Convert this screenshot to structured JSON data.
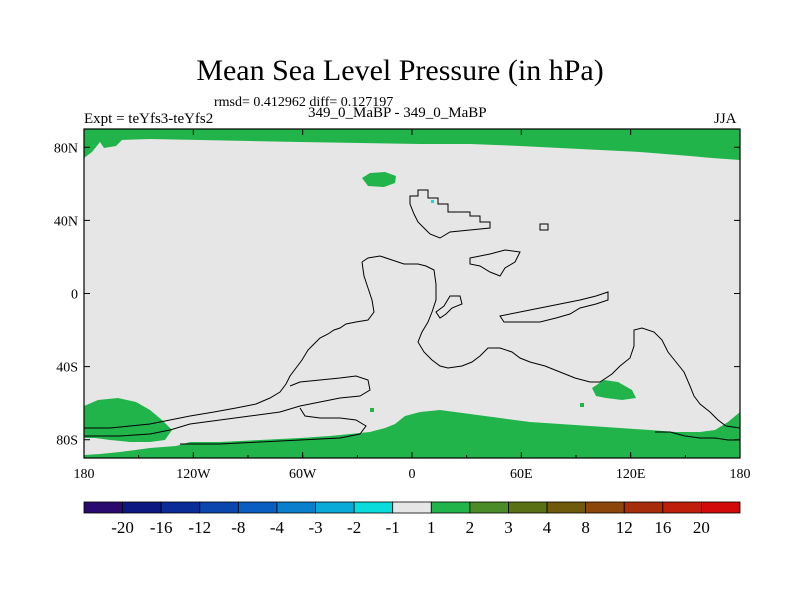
{
  "chart_data": {
    "type": "heatmap",
    "title": "Mean Sea Level Pressure (in hPa)",
    "stats": "rmsd= 0.412962 diff= 0.127197",
    "left_string": "Expt = teYfs3-teYfs2",
    "center_string": "349_0_MaBP - 349_0_MaBP",
    "right_string": "JJA",
    "x_ticks": [
      "180",
      "120W",
      "60W",
      "0",
      "60E",
      "120E",
      "180"
    ],
    "y_ticks": [
      "80N",
      "40N",
      "0",
      "40S",
      "80S"
    ],
    "xlim": [
      -180,
      180
    ],
    "ylim": [
      -90,
      90
    ],
    "colorbar": {
      "labels": [
        "-20",
        "-16",
        "-12",
        "-8",
        "-4",
        "-3",
        "-2",
        "-1",
        "1",
        "2",
        "3",
        "4",
        "8",
        "12",
        "16",
        "20"
      ],
      "colors": [
        "#2a0a6e",
        "#0d1880",
        "#0a2c96",
        "#0a46ae",
        "#0a5ec2",
        "#0a80cc",
        "#0aaad8",
        "#0adcdc",
        "#e6e6e6",
        "#21b44b",
        "#4c8c28",
        "#5a7014",
        "#6e5a0a",
        "#8c460a",
        "#a62c0a",
        "#be1e0a",
        "#d20a0a"
      ]
    },
    "colors": {
      "background_field": "#e6e6e6",
      "positive_field": "#21b44b"
    },
    "regions": [
      {
        "name": "arctic",
        "level": "1 to 2"
      },
      {
        "name": "north-polar-patch",
        "level": "1 to 2"
      },
      {
        "name": "antarctic",
        "level": "1 to 2"
      },
      {
        "name": "southwest-patch",
        "level": "1 to 2"
      },
      {
        "name": "southeast-ocean-patch",
        "level": "1 to 2"
      }
    ]
  }
}
